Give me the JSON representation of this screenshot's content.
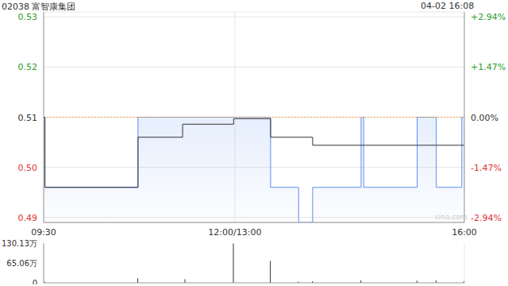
{
  "chart_data": [
    {
      "type": "line",
      "title": "02038 富智康集团",
      "subtitle": "04-02 16:08",
      "watermark": "sina.com",
      "x": [
        0,
        1,
        74,
        109,
        149,
        178,
        200,
        211,
        249,
        251,
        293,
        308,
        328,
        330
      ],
      "xlim": [
        0,
        330
      ],
      "xticks": [
        {
          "value": 0,
          "label": "09:30"
        },
        {
          "value": 150,
          "label": "12:00/13:00"
        },
        {
          "value": 330,
          "label": "16:00"
        }
      ],
      "ylim": [
        0.489,
        0.531
      ],
      "yticks": [
        0.49,
        {
          "value": 0.5,
          "label": "0.50"
        },
        0.51,
        0.52,
        0.53
      ],
      "y2lim": [
        -3.087,
        3.087
      ],
      "y2ticks": [
        {
          "value": -2.94,
          "label": "-2.94%"
        },
        {
          "value": -1.47,
          "label": "-1.47%"
        },
        {
          "value": 0,
          "label": "0.00%"
        },
        {
          "value": 1.47,
          "label": "+1.47%"
        },
        {
          "value": 2.94,
          "label": "+2.94%"
        }
      ],
      "prev_close": 0.51,
      "grid": true,
      "series": [
        {
          "type": "area",
          "line_style": "step",
          "color": "#5b8def",
          "values": [
            0.51,
            0.496,
            0.51,
            0.51,
            0.51,
            0.496,
            0.489,
            0.496,
            0.51,
            0.496,
            0.51,
            0.496,
            0.51,
            0.51
          ]
        },
        {
          "type": "line",
          "line_style": "step",
          "color": "#333333",
          "values": [
            0.51,
            0.496,
            0.506,
            0.5086,
            0.5097,
            0.506,
            0.506,
            0.5044,
            0.5044,
            0.5044,
            0.5044,
            0.5044,
            0.5044,
            0.5044
          ]
        }
      ]
    },
    {
      "type": "bar",
      "x": [
        0,
        1,
        74,
        111,
        149,
        178,
        200,
        211,
        249,
        293,
        308,
        330
      ],
      "xlim": [
        0,
        330
      ],
      "values": [
        60000,
        30000,
        150000,
        120000,
        1290000,
        720000,
        40000,
        50000,
        80000,
        70000,
        80000,
        60000
      ],
      "color": "#333333",
      "ylim": [
        0,
        1301300
      ],
      "yticks": [
        0,
        {
          "value": 650600,
          "label": "65.06万"
        },
        {
          "value": 1301300,
          "label": "130.13万"
        }
      ],
      "tick_labels": "y",
      "grid": true
    }
  ]
}
